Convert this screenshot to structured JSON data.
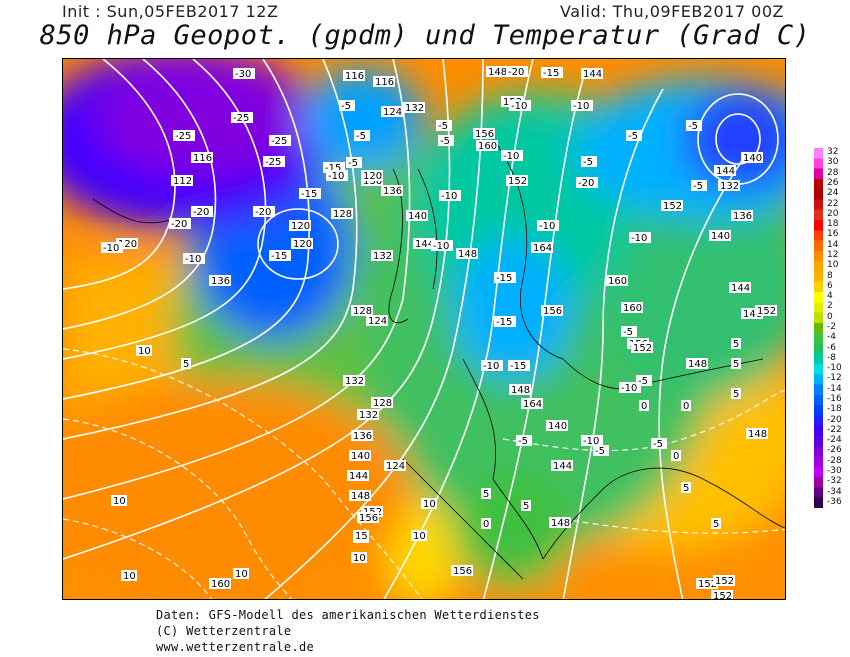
{
  "header": {
    "init": "Init : Sun,05FEB2017 12Z",
    "valid": "Valid: Thu,09FEB2017 00Z",
    "title": "850 hPa Geopot. (gpdm) und Temperatur (Grad C)"
  },
  "legend": {
    "values": [
      "32",
      "30",
      "28",
      "26",
      "24",
      "22",
      "20",
      "18",
      "16",
      "14",
      "12",
      "10",
      "8",
      "6",
      "4",
      "2",
      "0",
      "-2",
      "-4",
      "-6",
      "-8",
      "-10",
      "-12",
      "-14",
      "-16",
      "-18",
      "-20",
      "-22",
      "-24",
      "-26",
      "-28",
      "-30",
      "-32",
      "-34",
      "-36"
    ],
    "colors": [
      "#ff80ff",
      "#ff40e0",
      "#e000a0",
      "#c00000",
      "#b00000",
      "#d01010",
      "#e03020",
      "#ff0000",
      "#ff4000",
      "#ff6a00",
      "#ff8c00",
      "#ffa500",
      "#ffb000",
      "#ffd000",
      "#ffff00",
      "#e0f000",
      "#c0e000",
      "#60c000",
      "#40c040",
      "#20c060",
      "#00c8a0",
      "#00e0e0",
      "#00b0ff",
      "#0080ff",
      "#0060ff",
      "#0040ff",
      "#2020ff",
      "#4000ff",
      "#6000e0",
      "#8000e0",
      "#a000e0",
      "#c000ff",
      "#a000a0",
      "#600080",
      "#300050"
    ]
  },
  "geopotential_labels": [
    "116",
    "116",
    "112",
    "116",
    "120",
    "120",
    "128",
    "132",
    "136",
    "136",
    "140",
    "144",
    "148",
    "152",
    "156",
    "160",
    "164",
    "132",
    "124",
    "124",
    "120",
    "120",
    "136",
    "128",
    "132",
    "124",
    "128",
    "132",
    "136",
    "140",
    "144",
    "148",
    "152",
    "156",
    "148",
    "152",
    "156",
    "160",
    "164",
    "160",
    "156",
    "152",
    "144",
    "140",
    "132",
    "136",
    "140",
    "144",
    "148",
    "152",
    "152",
    "148",
    "148",
    "144",
    "140",
    "148",
    "152",
    "156",
    "152",
    "152",
    "160",
    "148",
    "144"
  ],
  "temperature_labels": [
    "-30",
    "-25",
    "-25",
    "-25",
    "-25",
    "-20",
    "-20",
    "-20",
    "-15",
    "-15",
    "-15",
    "-10",
    "-10",
    "-5",
    "-5",
    "-5",
    "-10",
    "-10",
    "-5",
    "-5",
    "-15",
    "-10",
    "-10",
    "-10",
    "-10",
    "-15",
    "-15",
    "-10",
    "-10",
    "-5",
    "-5",
    "-5",
    "-5",
    "-10",
    "-5",
    "-5",
    "-20",
    "-15",
    "-20",
    "-10",
    "-5",
    "-10",
    "-5",
    "-5",
    "0",
    "0",
    "5",
    "5",
    "5",
    "5",
    "5",
    "5",
    "5",
    "10",
    "10",
    "10",
    "10",
    "10",
    "10",
    "10",
    "15",
    "10",
    "5",
    "0",
    "0"
  ],
  "footer": {
    "line1": "Daten: GFS-Modell des amerikanischen Wetterdienstes",
    "line2": "(C) Wetterzentrale",
    "line3": "www.wetterzentrale.de"
  }
}
